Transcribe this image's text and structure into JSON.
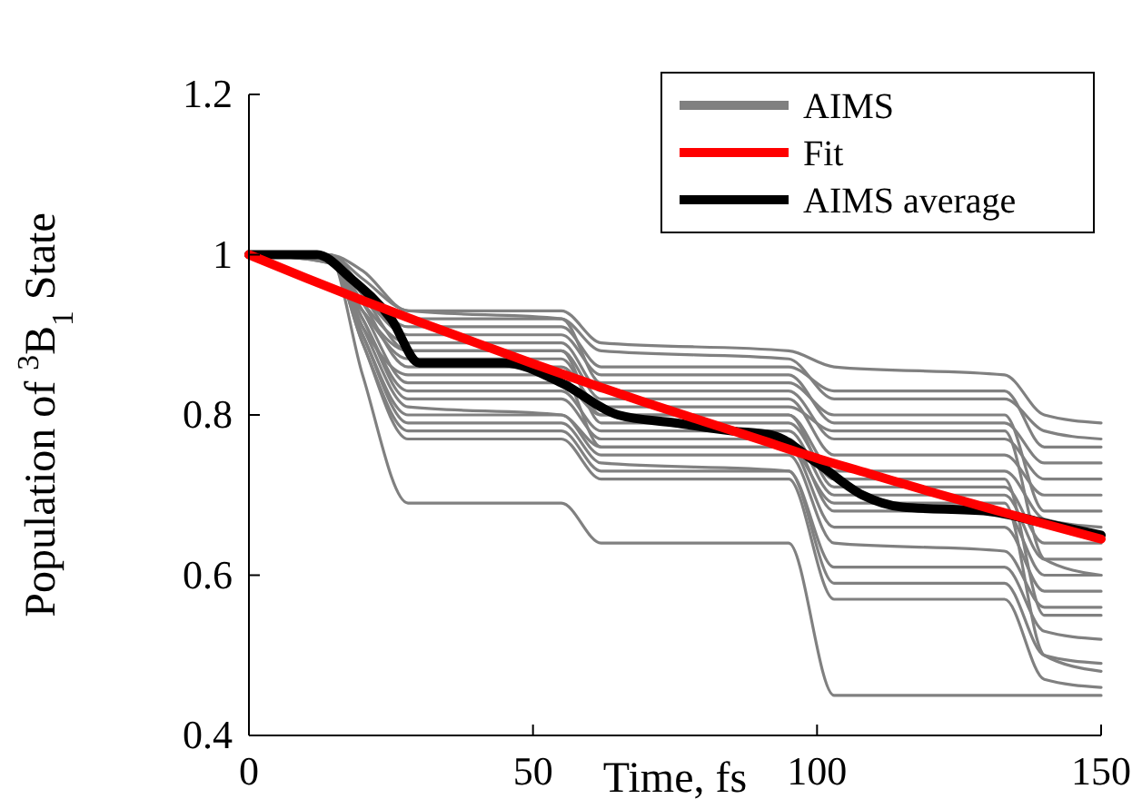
{
  "chart_data": {
    "type": "line",
    "xlabel": "Time, fs",
    "ylabel": "Population of $^{3}$B$_{1}$ State",
    "xlim": [
      0,
      150
    ],
    "xticks": [
      0,
      50,
      100,
      150
    ],
    "ylim": [
      0.4,
      1.2
    ],
    "yticks": [
      0.4,
      0.6,
      0.8,
      1,
      1.2
    ],
    "grid": false,
    "legend": "top right",
    "series": [
      {
        "name": "AIMS",
        "color": "#808080",
        "x": [
          0,
          14,
          20,
          28,
          55,
          62,
          95,
          103,
          133,
          140,
          150
        ],
        "values": [
          1,
          1,
          0.98,
          0.93,
          0.93,
          0.89,
          0.88,
          0.86,
          0.85,
          0.8,
          0.79
        ]
      },
      {
        "color": "#808080",
        "x": [
          0,
          14,
          20,
          28,
          55,
          62,
          95,
          103,
          133,
          140,
          150
        ],
        "values": [
          1,
          1,
          0.97,
          0.93,
          0.92,
          0.88,
          0.87,
          0.82,
          0.82,
          0.78,
          0.77
        ]
      },
      {
        "color": "#808080",
        "x": [
          0,
          14,
          20,
          28,
          55,
          62,
          95,
          103,
          133,
          140,
          150
        ],
        "values": [
          1,
          1,
          0.96,
          0.91,
          0.91,
          0.86,
          0.86,
          0.83,
          0.83,
          0.76,
          0.76
        ]
      },
      {
        "color": "#808080",
        "x": [
          0,
          14,
          20,
          28,
          55,
          62,
          95,
          103,
          133,
          140,
          150
        ],
        "values": [
          1,
          1,
          0.95,
          0.9,
          0.9,
          0.85,
          0.85,
          0.79,
          0.79,
          0.74,
          0.74
        ]
      },
      {
        "color": "#808080",
        "x": [
          0,
          14,
          20,
          28,
          55,
          62,
          95,
          103,
          133,
          140,
          150
        ],
        "values": [
          1,
          1,
          0.94,
          0.89,
          0.89,
          0.83,
          0.83,
          0.77,
          0.77,
          0.72,
          0.72
        ]
      },
      {
        "color": "#808080",
        "x": [
          0,
          14,
          20,
          28,
          55,
          62,
          95,
          103,
          133,
          140,
          150
        ],
        "values": [
          1,
          0.99,
          0.93,
          0.88,
          0.88,
          0.82,
          0.82,
          0.75,
          0.75,
          0.7,
          0.7
        ]
      },
      {
        "color": "#808080",
        "x": [
          0,
          14,
          20,
          28,
          55,
          62,
          95,
          103,
          133,
          140,
          150
        ],
        "values": [
          1,
          0.99,
          0.93,
          0.87,
          0.87,
          0.8,
          0.8,
          0.73,
          0.73,
          0.67,
          0.66
        ]
      },
      {
        "color": "#808080",
        "x": [
          0,
          14,
          20,
          28,
          55,
          62,
          95,
          103,
          133,
          140,
          150
        ],
        "values": [
          1,
          1,
          0.93,
          0.84,
          0.84,
          0.8,
          0.8,
          0.71,
          0.71,
          0.64,
          0.64
        ]
      },
      {
        "color": "#808080",
        "x": [
          0,
          14,
          20,
          28,
          55,
          62,
          95,
          103,
          133,
          140,
          150
        ],
        "values": [
          1,
          1,
          0.92,
          0.83,
          0.83,
          0.78,
          0.78,
          0.7,
          0.7,
          0.62,
          0.62
        ]
      },
      {
        "color": "#808080",
        "x": [
          0,
          14,
          20,
          28,
          55,
          62,
          95,
          103,
          133,
          140,
          150
        ],
        "values": [
          1,
          1,
          0.92,
          0.82,
          0.82,
          0.77,
          0.77,
          0.68,
          0.68,
          0.6,
          0.6
        ]
      },
      {
        "color": "#808080",
        "x": [
          0,
          14,
          20,
          28,
          55,
          62,
          95,
          103,
          133,
          140,
          150
        ],
        "values": [
          1,
          1,
          0.91,
          0.81,
          0.8,
          0.76,
          0.76,
          0.66,
          0.66,
          0.58,
          0.58
        ]
      },
      {
        "color": "#808080",
        "x": [
          0,
          14,
          20,
          28,
          55,
          62,
          95,
          103,
          133,
          140,
          150
        ],
        "values": [
          1,
          1,
          0.9,
          0.8,
          0.8,
          0.75,
          0.75,
          0.64,
          0.63,
          0.56,
          0.56
        ]
      },
      {
        "color": "#808080",
        "x": [
          0,
          14,
          20,
          28,
          55,
          62,
          95,
          103,
          133,
          140,
          150
        ],
        "values": [
          1,
          1,
          0.9,
          0.79,
          0.79,
          0.74,
          0.73,
          0.61,
          0.61,
          0.53,
          0.52
        ]
      },
      {
        "color": "#808080",
        "x": [
          0,
          14,
          20,
          28,
          55,
          62,
          95,
          103,
          133,
          140,
          150
        ],
        "values": [
          1,
          1,
          0.89,
          0.78,
          0.78,
          0.73,
          0.73,
          0.59,
          0.59,
          0.5,
          0.49
        ]
      },
      {
        "color": "#808080",
        "x": [
          0,
          14,
          20,
          28,
          55,
          62,
          95,
          103,
          133,
          140,
          150
        ],
        "values": [
          1,
          1,
          0.89,
          0.77,
          0.77,
          0.72,
          0.72,
          0.57,
          0.57,
          0.47,
          0.46
        ]
      },
      {
        "color": "#808080",
        "x": [
          0,
          14,
          20,
          28,
          55,
          62,
          95,
          103,
          133,
          140,
          150
        ],
        "values": [
          1,
          1,
          0.85,
          0.69,
          0.69,
          0.64,
          0.64,
          0.45,
          0.45,
          0.45,
          0.45
        ]
      },
      {
        "color": "#808080",
        "x": [
          0,
          14,
          20,
          28,
          55,
          62,
          95,
          103,
          133,
          140,
          150
        ],
        "values": [
          1,
          1,
          0.96,
          0.92,
          0.92,
          0.84,
          0.84,
          0.8,
          0.8,
          0.68,
          0.68
        ]
      },
      {
        "color": "#808080",
        "x": [
          0,
          14,
          20,
          28,
          55,
          62,
          95,
          103,
          133,
          140,
          150
        ],
        "values": [
          1,
          1,
          0.94,
          0.86,
          0.86,
          0.81,
          0.81,
          0.78,
          0.78,
          0.62,
          0.6
        ]
      },
      {
        "color": "#808080",
        "x": [
          0,
          14,
          20,
          28,
          55,
          62,
          95,
          103,
          133,
          140,
          150
        ],
        "values": [
          1,
          1,
          0.95,
          0.88,
          0.88,
          0.79,
          0.79,
          0.72,
          0.72,
          0.55,
          0.55
        ]
      },
      {
        "color": "#808080",
        "x": [
          0,
          14,
          20,
          28,
          55,
          62,
          95,
          103,
          133,
          140,
          150
        ],
        "values": [
          1,
          1,
          0.91,
          0.85,
          0.85,
          0.76,
          0.76,
          0.69,
          0.69,
          0.5,
          0.48
        ]
      },
      {
        "name": "AIMS average",
        "color": "#000000",
        "x": [
          0,
          12,
          18,
          25,
          30,
          45,
          55,
          65,
          75,
          85,
          92,
          100,
          108,
          115,
          130,
          140,
          150
        ],
        "values": [
          1,
          1,
          0.97,
          0.92,
          0.865,
          0.865,
          0.84,
          0.8,
          0.79,
          0.78,
          0.775,
          0.74,
          0.7,
          0.685,
          0.68,
          0.665,
          0.65
        ]
      },
      {
        "name": "Fit",
        "color": "#ff0000",
        "x": [
          0,
          10,
          20,
          30,
          40,
          50,
          60,
          70,
          80,
          90,
          100,
          110,
          120,
          130,
          140,
          150
        ],
        "values": [
          1,
          0.971,
          0.943,
          0.916,
          0.89,
          0.864,
          0.839,
          0.815,
          0.792,
          0.769,
          0.746,
          0.725,
          0.704,
          0.684,
          0.664,
          0.645
        ]
      }
    ]
  }
}
